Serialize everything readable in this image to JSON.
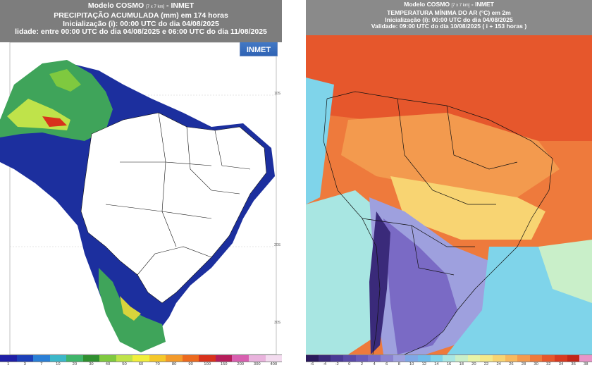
{
  "left": {
    "model": "Modelo COSMO",
    "model_res": "[7 x 7 km]",
    "model_suffix": " - INMET",
    "title": "PRECIPITAÇÃO ACUMULADA (mm) em 174 horas",
    "init": "Inicialização (i): 00:00 UTC do dia 04/08/2025",
    "validity": "lidade: entre 00:00 UTC do dia 04/08/2025 e 06:00 UTC do dia 11/08/2025",
    "logo": "INMET",
    "lat_ticks": [
      "10S",
      "20S",
      "30S"
    ],
    "colorbar": {
      "labels": [
        "1",
        "3",
        "7",
        "10",
        "20",
        "30",
        "40",
        "50",
        "60",
        "70",
        "80",
        "90",
        "100",
        "150",
        "200",
        "300",
        "400"
      ],
      "colors": [
        "#1f1fa6",
        "#1c3fb8",
        "#2a7fd6",
        "#3cb7c9",
        "#3fb56a",
        "#2f8f2f",
        "#7fc93f",
        "#bfe34a",
        "#f1ef3c",
        "#f5c82a",
        "#f39a2a",
        "#ec6a1e",
        "#d8321c",
        "#b51d5a",
        "#d85fb0",
        "#e9b3dd",
        "#f3dbef"
      ]
    }
  },
  "right": {
    "model": "Modelo COSMO",
    "model_res": "[7 x 7 km]",
    "model_suffix": " - INMET",
    "title": "TEMPERATURA MÍNIMA DO AR (°C) em 2m",
    "init": "Inicialização (i): 00:00 UTC do dia 04/08/2025",
    "validity": "Validade: 09:00 UTC do dia 10/08/2025 ( i + 153 horas )",
    "colorbar": {
      "labels": [
        "-6",
        "-4",
        "-2",
        "0",
        "2",
        "4",
        "6",
        "8",
        "10",
        "12",
        "14",
        "16",
        "18",
        "20",
        "22",
        "24",
        "26",
        "28",
        "30",
        "32",
        "34",
        "36",
        "38"
      ],
      "colors": [
        "#2a1a5c",
        "#3a2a7a",
        "#4a3a95",
        "#5a4aa8",
        "#6a5ab8",
        "#7a6ac5",
        "#8a82d0",
        "#9ea0de",
        "#7fa8e6",
        "#6fbcea",
        "#7fd4ea",
        "#a8e6e2",
        "#c9efc9",
        "#e8f4a8",
        "#f5e98a",
        "#f8d472",
        "#f7b95e",
        "#f39a4e",
        "#ee7a3c",
        "#e6572c",
        "#d83a20",
        "#c22618",
        "#e895c8"
      ]
    }
  }
}
